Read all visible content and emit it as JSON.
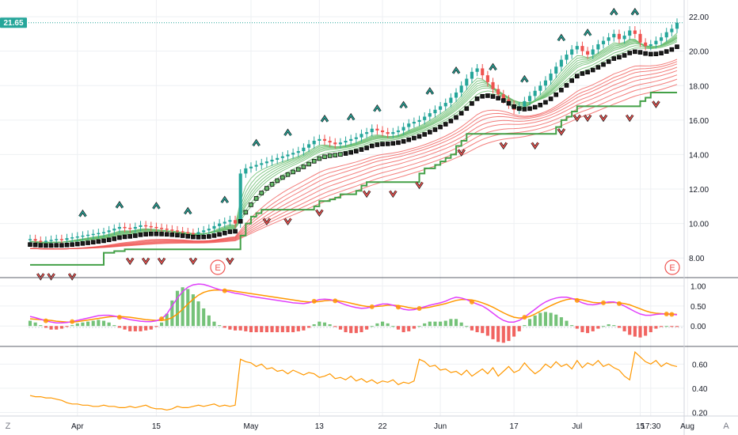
{
  "chart_data": {
    "type": "candlestick-with-indicators",
    "colors": {
      "up": "#26a69a",
      "down": "#ef5350",
      "last_price_bg": "#26a69a",
      "fast_ma": "#66bb6a",
      "slow_ma": "#ef5350",
      "trail_stop": "#43a047",
      "trend_line": "#000000",
      "signal_up": "#26a69a",
      "signal_down": "#ef5350",
      "macd_line": "#e040fb",
      "signal_line": "#ff9800",
      "hist_up": "#66bb6a",
      "hist_down": "#ef5350",
      "lower_line": "#ff9800",
      "grid": "#eef0f3"
    },
    "price_pane": {
      "y_ticks": [
        "8.00",
        "10.00",
        "12.00",
        "14.00",
        "16.00",
        "18.00",
        "20.00",
        "22.00"
      ],
      "ylim": [
        7.0,
        22.6
      ],
      "last_price": "21.65",
      "last_value": 21.65
    },
    "osc_pane": {
      "y_ticks": [
        "1.00",
        "0.50",
        "0.00"
      ],
      "ylim": [
        -0.45,
        1.15
      ]
    },
    "lower_pane": {
      "y_ticks": [
        "0.60",
        "0.40",
        "0.20"
      ],
      "ylim": [
        0.19,
        0.72
      ]
    },
    "x_ticks": [
      "Apr",
      "15",
      "May",
      "13",
      "22",
      "Jun",
      "17",
      "Jul",
      "15",
      "17:30",
      "Aug"
    ],
    "earnings_label": "E",
    "axis_corner_left": "Z",
    "axis_corner_right": "A",
    "close": [
      9.1,
      9.0,
      8.95,
      9.0,
      9.05,
      9.1,
      9.05,
      9.15,
      9.2,
      9.25,
      9.3,
      9.35,
      9.4,
      9.45,
      9.5,
      9.6,
      9.7,
      9.8,
      9.75,
      9.7,
      9.8,
      9.9,
      9.85,
      9.8,
      9.75,
      9.7,
      9.65,
      9.6,
      9.55,
      9.5,
      9.45,
      9.4,
      9.5,
      9.6,
      9.7,
      9.85,
      10.0,
      10.1,
      10.2,
      10.0,
      12.9,
      13.2,
      13.3,
      13.4,
      13.5,
      13.6,
      13.7,
      13.8,
      13.9,
      14.0,
      14.1,
      14.2,
      14.4,
      14.6,
      14.8,
      14.9,
      14.8,
      14.7,
      14.6,
      14.7,
      14.8,
      14.9,
      15.0,
      15.2,
      15.3,
      15.5,
      15.4,
      15.3,
      15.2,
      15.3,
      15.4,
      15.6,
      15.8,
      15.9,
      16.0,
      16.2,
      16.4,
      16.6,
      16.8,
      17.0,
      17.3,
      17.6,
      18.0,
      18.4,
      18.8,
      19.0,
      18.6,
      18.2,
      17.8,
      17.5,
      17.2,
      16.9,
      16.6,
      16.8,
      17.1,
      17.4,
      17.7,
      18.0,
      18.3,
      18.7,
      19.1,
      19.5,
      19.8,
      20.1,
      20.3,
      20.0,
      19.8,
      20.1,
      20.4,
      20.6,
      20.8,
      21.0,
      20.7,
      20.9,
      21.2,
      21.0,
      20.5,
      20.3,
      20.4,
      20.6,
      20.8,
      21.1,
      21.3,
      21.65
    ],
    "osc_macd": [
      0.24,
      0.21,
      0.17,
      0.13,
      0.1,
      0.08,
      0.08,
      0.09,
      0.11,
      0.14,
      0.17,
      0.2,
      0.23,
      0.26,
      0.27,
      0.27,
      0.25,
      0.22,
      0.19,
      0.16,
      0.14,
      0.12,
      0.11,
      0.11,
      0.13,
      0.18,
      0.3,
      0.5,
      0.7,
      0.86,
      0.97,
      1.03,
      1.05,
      1.04,
      1.0,
      0.95,
      0.91,
      0.88,
      0.85,
      0.82,
      0.8,
      0.77,
      0.74,
      0.72,
      0.7,
      0.68,
      0.66,
      0.64,
      0.62,
      0.6,
      0.58,
      0.57,
      0.56,
      0.58,
      0.62,
      0.66,
      0.67,
      0.66,
      0.63,
      0.58,
      0.53,
      0.49,
      0.46,
      0.44,
      0.45,
      0.48,
      0.52,
      0.55,
      0.55,
      0.52,
      0.47,
      0.42,
      0.4,
      0.41,
      0.44,
      0.48,
      0.52,
      0.55,
      0.58,
      0.62,
      0.68,
      0.72,
      0.7,
      0.66,
      0.6,
      0.55,
      0.5,
      0.42,
      0.32,
      0.22,
      0.14,
      0.1,
      0.1,
      0.14,
      0.22,
      0.32,
      0.42,
      0.52,
      0.6,
      0.66,
      0.7,
      0.72,
      0.72,
      0.69,
      0.64,
      0.58,
      0.54,
      0.53,
      0.55,
      0.58,
      0.6,
      0.6,
      0.56,
      0.5,
      0.43,
      0.36,
      0.3,
      0.27,
      0.27,
      0.29,
      0.3,
      0.3,
      0.29,
      0.28
    ],
    "osc_signal": [
      0.18,
      0.17,
      0.16,
      0.15,
      0.14,
      0.12,
      0.11,
      0.1,
      0.1,
      0.11,
      0.13,
      0.15,
      0.17,
      0.19,
      0.21,
      0.23,
      0.24,
      0.24,
      0.23,
      0.22,
      0.2,
      0.18,
      0.16,
      0.15,
      0.14,
      0.14,
      0.16,
      0.21,
      0.3,
      0.42,
      0.55,
      0.67,
      0.77,
      0.84,
      0.88,
      0.9,
      0.9,
      0.9,
      0.89,
      0.87,
      0.85,
      0.83,
      0.81,
      0.79,
      0.77,
      0.75,
      0.73,
      0.71,
      0.69,
      0.67,
      0.65,
      0.63,
      0.61,
      0.6,
      0.6,
      0.61,
      0.63,
      0.64,
      0.64,
      0.62,
      0.6,
      0.57,
      0.54,
      0.51,
      0.49,
      0.48,
      0.49,
      0.5,
      0.52,
      0.52,
      0.51,
      0.49,
      0.46,
      0.44,
      0.44,
      0.45,
      0.47,
      0.5,
      0.53,
      0.56,
      0.6,
      0.64,
      0.66,
      0.66,
      0.65,
      0.62,
      0.58,
      0.53,
      0.47,
      0.4,
      0.33,
      0.27,
      0.22,
      0.2,
      0.21,
      0.24,
      0.3,
      0.37,
      0.44,
      0.51,
      0.57,
      0.62,
      0.66,
      0.68,
      0.67,
      0.65,
      0.62,
      0.59,
      0.58,
      0.58,
      0.58,
      0.59,
      0.58,
      0.56,
      0.53,
      0.48,
      0.43,
      0.38,
      0.34,
      0.32,
      0.31,
      0.3,
      0.3,
      0.29
    ],
    "lower_values": [
      0.34,
      0.33,
      0.33,
      0.32,
      0.32,
      0.31,
      0.3,
      0.28,
      0.27,
      0.27,
      0.26,
      0.26,
      0.25,
      0.25,
      0.26,
      0.25,
      0.25,
      0.24,
      0.24,
      0.25,
      0.24,
      0.25,
      0.26,
      0.24,
      0.23,
      0.23,
      0.22,
      0.23,
      0.25,
      0.24,
      0.24,
      0.25,
      0.26,
      0.25,
      0.26,
      0.27,
      0.25,
      0.26,
      0.25,
      0.26,
      0.64,
      0.62,
      0.61,
      0.58,
      0.6,
      0.56,
      0.57,
      0.54,
      0.55,
      0.52,
      0.55,
      0.53,
      0.51,
      0.53,
      0.52,
      0.49,
      0.5,
      0.52,
      0.48,
      0.49,
      0.47,
      0.5,
      0.46,
      0.48,
      0.45,
      0.47,
      0.44,
      0.46,
      0.45,
      0.47,
      0.43,
      0.45,
      0.44,
      0.46,
      0.64,
      0.62,
      0.58,
      0.59,
      0.55,
      0.56,
      0.53,
      0.54,
      0.51,
      0.55,
      0.5,
      0.53,
      0.56,
      0.52,
      0.57,
      0.5,
      0.54,
      0.58,
      0.53,
      0.55,
      0.61,
      0.56,
      0.52,
      0.55,
      0.6,
      0.57,
      0.62,
      0.58,
      0.6,
      0.56,
      0.63,
      0.57,
      0.61,
      0.59,
      0.63,
      0.58,
      0.6,
      0.57,
      0.55,
      0.5,
      0.47,
      0.7,
      0.66,
      0.62,
      0.6,
      0.63,
      0.58,
      0.61,
      0.59,
      0.58
    ],
    "trail_stop": [
      7.6,
      7.6,
      7.6,
      7.6,
      7.6,
      7.6,
      7.6,
      7.6,
      7.6,
      7.6,
      7.6,
      7.6,
      7.6,
      7.6,
      8.3,
      8.3,
      8.4,
      8.4,
      8.5,
      8.5,
      8.5,
      8.5,
      8.5,
      8.5,
      8.5,
      8.5,
      8.5,
      8.5,
      8.5,
      8.5,
      8.5,
      8.5,
      8.5,
      8.5,
      8.5,
      8.5,
      8.5,
      8.5,
      8.5,
      8.5,
      9.3,
      10.0,
      10.4,
      10.6,
      10.8,
      10.8,
      10.8,
      10.8,
      10.8,
      10.8,
      10.8,
      10.8,
      10.8,
      10.8,
      11.0,
      11.3,
      11.3,
      11.4,
      11.5,
      11.7,
      11.7,
      11.7,
      11.9,
      12.2,
      12.4,
      12.4,
      12.4,
      12.4,
      12.4,
      12.4,
      12.4,
      12.4,
      12.4,
      12.4,
      12.9,
      13.2,
      13.2,
      13.4,
      13.6,
      13.8,
      14.0,
      14.5,
      14.8,
      15.2,
      15.2,
      15.2,
      15.2,
      15.2,
      15.2,
      15.2,
      15.2,
      15.2,
      15.2,
      15.2,
      15.2,
      15.2,
      15.2,
      15.2,
      15.2,
      15.2,
      15.6,
      16.0,
      16.2,
      16.5,
      16.8,
      16.8,
      16.8,
      16.8,
      16.8,
      16.8,
      16.8,
      16.8,
      16.8,
      16.8,
      16.8,
      16.8,
      17.1,
      17.3,
      17.6,
      17.6,
      17.6,
      17.6,
      17.6,
      17.6
    ],
    "up_signal_idx": [
      10,
      17,
      24,
      30,
      37,
      43,
      49,
      56,
      61,
      66,
      71,
      76,
      81,
      88,
      94,
      101,
      106,
      111,
      115
    ],
    "down_signal_idx": [
      2,
      4,
      8,
      19,
      22,
      25,
      31,
      38,
      45,
      49,
      55,
      64,
      69,
      74,
      82,
      90,
      96,
      101,
      104,
      106,
      109,
      114,
      119
    ]
  }
}
